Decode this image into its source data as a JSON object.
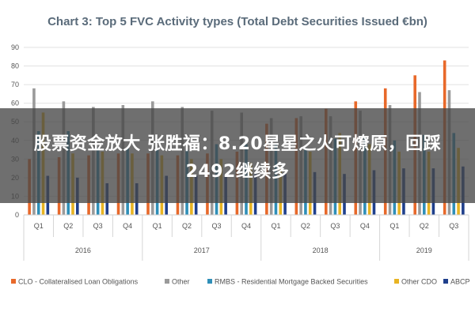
{
  "chart_data": {
    "type": "bar",
    "title": "Chart 3: Top 5 FVC Activity types (Total Debt Securities Issued €bn)",
    "ylim": [
      0,
      90
    ],
    "yticks": [
      0,
      10,
      20,
      30,
      40,
      50,
      60,
      70,
      80,
      90
    ],
    "categories": [
      "Q1",
      "Q2",
      "Q3",
      "Q4",
      "Q1",
      "Q2",
      "Q3",
      "Q4",
      "Q1",
      "Q2",
      "Q3",
      "Q4",
      "Q1",
      "Q2",
      "Q3"
    ],
    "year_groups": [
      {
        "label": "2016",
        "count": 4
      },
      {
        "label": "2017",
        "count": 4
      },
      {
        "label": "2018",
        "count": 4
      },
      {
        "label": "2019",
        "count": 3
      }
    ],
    "series": [
      {
        "name": "CLO - Collateralised Loan Obligations",
        "color": "#e8692a",
        "values": [
          30,
          31,
          32,
          33,
          33,
          32,
          33,
          34,
          49,
          52,
          57,
          61,
          68,
          75,
          83
        ]
      },
      {
        "name": "Other",
        "color": "#9a9a9a",
        "values": [
          68,
          61,
          58,
          59,
          61,
          58,
          56,
          55,
          52,
          53,
          53,
          56,
          59,
          66,
          67
        ]
      },
      {
        "name": "RMBS - Residential Mortgage Backed Securities",
        "color": "#2f8fb8",
        "values": [
          45,
          45,
          36,
          36,
          36,
          35,
          38,
          38,
          38,
          36,
          41,
          42,
          40,
          43,
          44
        ]
      },
      {
        "name": "Other CDO",
        "color": "#e8b423",
        "values": [
          55,
          33,
          34,
          33,
          32,
          30,
          30,
          28,
          26,
          34,
          44,
          38,
          34,
          34,
          36
        ]
      },
      {
        "name": "ABCP",
        "color": "#1f3f8c",
        "values": [
          21,
          20,
          17,
          17,
          21,
          21,
          22,
          22,
          22,
          23,
          22,
          24,
          25,
          25,
          26
        ]
      }
    ]
  },
  "overlay": {
    "line1": "股票资金放大 张胜福：8.20星星之火可燎原，回踩",
    "line2": "2492继续多"
  }
}
